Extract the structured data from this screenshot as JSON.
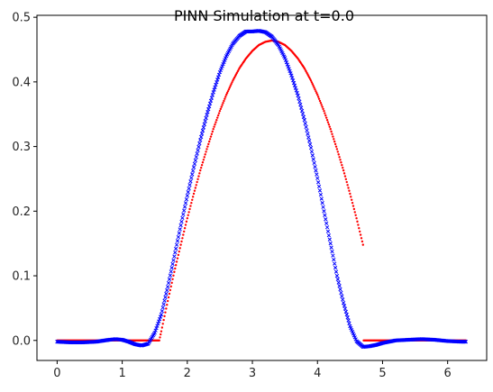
{
  "chart_data": {
    "type": "scatter",
    "title": "PINN Simulation at t=0.0",
    "xlabel": "",
    "ylabel": "",
    "xlim": [
      -0.31,
      6.6
    ],
    "ylim": [
      -0.031,
      0.503
    ],
    "x_ticks": [
      0,
      1,
      2,
      3,
      4,
      5,
      6
    ],
    "x_tick_labels": [
      "0",
      "1",
      "2",
      "3",
      "4",
      "5",
      "6"
    ],
    "y_ticks": [
      0.0,
      0.1,
      0.2,
      0.3,
      0.4,
      0.5
    ],
    "y_tick_labels": [
      "0.0",
      "0.1",
      "0.2",
      "0.3",
      "0.4",
      "0.5"
    ],
    "grid": false,
    "legend": "none",
    "series": [
      {
        "color": "#ff0000",
        "marker": "dot",
        "x": [
          0.0,
          0.2,
          0.4,
          0.6,
          0.8,
          1.0,
          1.2,
          1.4,
          1.57,
          1.6,
          1.7,
          1.8,
          1.9,
          2.0,
          2.1,
          2.2,
          2.3,
          2.4,
          2.5,
          2.6,
          2.7,
          2.8,
          2.9,
          3.0,
          3.1,
          3.2,
          3.3,
          3.4,
          3.5,
          3.6,
          3.7,
          3.8,
          3.9,
          4.0,
          4.1,
          4.2,
          4.3,
          4.4,
          4.5,
          4.6,
          4.7,
          4.71,
          4.8,
          5.0,
          5.2,
          5.4,
          5.6,
          5.8,
          6.0,
          6.2,
          6.28
        ],
        "y": [
          0.0,
          0.0,
          0.0,
          0.0,
          0.0,
          0.0,
          0.0,
          0.0,
          0.0,
          0.014,
          0.061,
          0.106,
          0.148,
          0.189,
          0.227,
          0.263,
          0.296,
          0.327,
          0.355,
          0.38,
          0.402,
          0.421,
          0.436,
          0.448,
          0.457,
          0.462,
          0.464,
          0.462,
          0.457,
          0.448,
          0.436,
          0.421,
          0.402,
          0.38,
          0.355,
          0.327,
          0.296,
          0.263,
          0.227,
          0.189,
          0.148,
          0.0,
          0.0,
          0.0,
          0.0,
          0.0,
          0.0,
          0.0,
          0.0,
          0.0,
          0.0
        ]
      },
      {
        "color": "#0000ff",
        "marker": "x",
        "x": [
          0.0,
          0.2,
          0.4,
          0.6,
          0.8,
          0.9,
          1.0,
          1.1,
          1.2,
          1.3,
          1.4,
          1.5,
          1.6,
          1.7,
          1.8,
          1.9,
          2.0,
          2.1,
          2.2,
          2.3,
          2.4,
          2.5,
          2.6,
          2.7,
          2.8,
          2.9,
          3.0,
          3.1,
          3.15,
          3.2,
          3.3,
          3.4,
          3.5,
          3.6,
          3.7,
          3.8,
          3.9,
          4.0,
          4.1,
          4.2,
          4.3,
          4.4,
          4.5,
          4.6,
          4.7,
          4.8,
          4.9,
          5.0,
          5.1,
          5.2,
          5.4,
          5.6,
          5.8,
          6.0,
          6.2,
          6.28
        ],
        "y": [
          -0.002,
          -0.003,
          -0.003,
          -0.002,
          0.001,
          0.002,
          0.001,
          -0.002,
          -0.006,
          -0.008,
          -0.005,
          0.012,
          0.04,
          0.083,
          0.13,
          0.178,
          0.224,
          0.268,
          0.31,
          0.349,
          0.384,
          0.415,
          0.44,
          0.459,
          0.471,
          0.478,
          0.478,
          0.479,
          0.478,
          0.477,
          0.47,
          0.457,
          0.437,
          0.41,
          0.379,
          0.341,
          0.298,
          0.251,
          0.2,
          0.15,
          0.1,
          0.058,
          0.022,
          -0.001,
          -0.01,
          -0.009,
          -0.007,
          -0.004,
          -0.002,
          0.0,
          0.001,
          0.002,
          0.001,
          -0.001,
          -0.002,
          -0.002
        ]
      }
    ]
  }
}
